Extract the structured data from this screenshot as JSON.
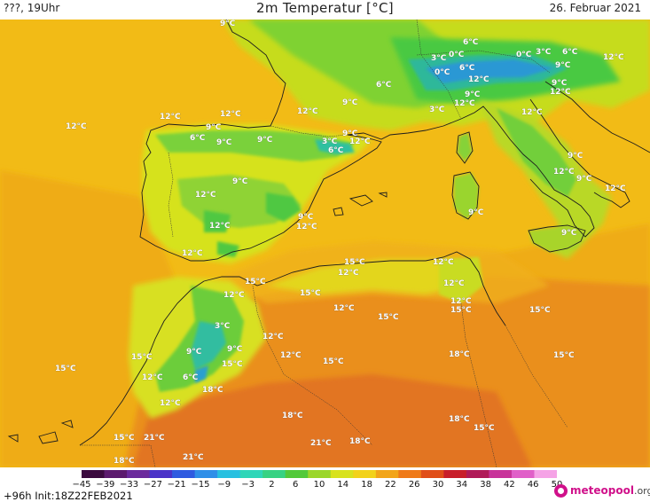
{
  "header": {
    "left_text": "???, 19Uhr",
    "title": "2m Temperatur [°C]",
    "date": "26. Februar 2021"
  },
  "map": {
    "labels": [
      {
        "text": "9°C"
      },
      {
        "text": "6°C"
      },
      {
        "text": "3°C"
      },
      {
        "text": "0°C"
      },
      {
        "text": "0°C"
      },
      {
        "text": "3°C"
      },
      {
        "text": "6°C"
      },
      {
        "text": "9°C"
      },
      {
        "text": "12°C"
      },
      {
        "text": "0°C"
      },
      {
        "text": "6°C"
      },
      {
        "text": "12°C"
      },
      {
        "text": "9°C"
      },
      {
        "text": "12°C"
      },
      {
        "text": "12°C"
      },
      {
        "text": "12°C"
      },
      {
        "text": "6°C"
      },
      {
        "text": "9°C"
      },
      {
        "text": "3°C"
      },
      {
        "text": "12°C"
      },
      {
        "text": "12°C"
      },
      {
        "text": "12°C"
      },
      {
        "text": "12°C"
      },
      {
        "text": "9°C"
      },
      {
        "text": "6°C"
      },
      {
        "text": "9°C"
      },
      {
        "text": "9°C"
      },
      {
        "text": "3°C"
      },
      {
        "text": "9°C"
      },
      {
        "text": "6°C"
      },
      {
        "text": "12°C"
      },
      {
        "text": "9°C"
      },
      {
        "text": "12°C"
      },
      {
        "text": "9°C"
      },
      {
        "text": "9°C"
      },
      {
        "text": "12°C"
      },
      {
        "text": "9°C"
      },
      {
        "text": "12°C"
      },
      {
        "text": "9°C"
      },
      {
        "text": "12°C"
      },
      {
        "text": "9°C"
      },
      {
        "text": "12°C"
      },
      {
        "text": "9°C"
      },
      {
        "text": "12°C"
      },
      {
        "text": "15°C"
      },
      {
        "text": "15°C"
      },
      {
        "text": "12°C"
      },
      {
        "text": "12°C"
      },
      {
        "text": "12°C"
      },
      {
        "text": "15°C"
      },
      {
        "text": "12°C"
      },
      {
        "text": "12°C"
      },
      {
        "text": "15°C"
      },
      {
        "text": "15°C"
      },
      {
        "text": "12°C"
      },
      {
        "text": "15°C"
      },
      {
        "text": "3°C"
      },
      {
        "text": "12°C"
      },
      {
        "text": "9°C"
      },
      {
        "text": "9°C"
      },
      {
        "text": "12°C"
      },
      {
        "text": "15°C"
      },
      {
        "text": "15°C"
      },
      {
        "text": "15°C"
      },
      {
        "text": "18°C"
      },
      {
        "text": "15°C"
      },
      {
        "text": "12°C"
      },
      {
        "text": "6°C"
      },
      {
        "text": "18°C"
      },
      {
        "text": "12°C"
      },
      {
        "text": "18°C"
      },
      {
        "text": "18°C"
      },
      {
        "text": "15°C"
      },
      {
        "text": "15°C"
      },
      {
        "text": "21°C"
      },
      {
        "text": "21°C"
      },
      {
        "text": "18°C"
      },
      {
        "text": "15°C"
      },
      {
        "text": "18°C"
      },
      {
        "text": "21°C"
      }
    ]
  },
  "legend": {
    "unit": "°C",
    "ticks": [
      "−45",
      "−39",
      "−33",
      "−27",
      "−21",
      "−15",
      "−9",
      "−3",
      "2",
      "6",
      "10",
      "14",
      "18",
      "22",
      "26",
      "30",
      "34",
      "38",
      "42",
      "46",
      "50"
    ],
    "colors": [
      "#3b0a3f",
      "#5c1a6e",
      "#6b2a9c",
      "#4b33c8",
      "#2f5be0",
      "#2f8fe8",
      "#28c0e0",
      "#2fd6b8",
      "#37d283",
      "#52c93a",
      "#9bd62a",
      "#d8e21e",
      "#f2d21a",
      "#f2a519",
      "#ef7a18",
      "#e04e18",
      "#c81e2a",
      "#b01a58",
      "#c8339a",
      "#e060c8",
      "#f5a3e6"
    ]
  },
  "footer": {
    "run_info": "+96h  Init:18Z22FEB2021",
    "logo_brand": "meteopool",
    "logo_tld": ".org"
  }
}
